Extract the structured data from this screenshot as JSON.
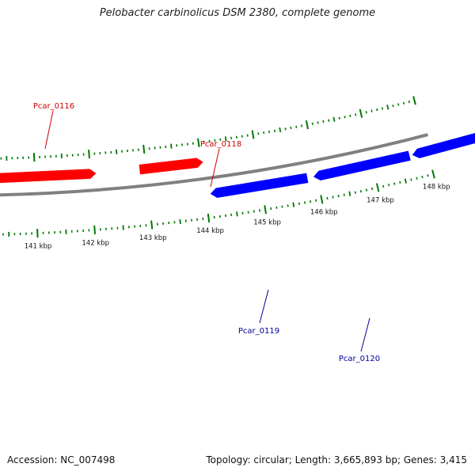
{
  "title": "Pelobacter carbinolicus DSM 2380, complete genome",
  "footer": {
    "accession": "Accession: NC_007498",
    "summary": "Topology: circular; Length: 3,665,893 bp; Genes: 3,415"
  },
  "colors": {
    "forward_gene": "#ff0000",
    "reverse_gene": "#0000ff",
    "forward_label": "#cc0000",
    "reverse_label": "#000099",
    "backbone": "#808080",
    "ticks": "#007700",
    "tick_label": "#111111"
  },
  "scale_labels": [
    "141 kbp",
    "142 kbp",
    "143 kbp",
    "144 kbp",
    "145 kbp",
    "146 kbp",
    "147 kbp",
    "148 kbp"
  ],
  "genes": [
    {
      "id": "Pcar_0116",
      "strand": "forward"
    },
    {
      "id": "Pcar_0118",
      "strand": "forward"
    },
    {
      "id": "Pcar_0119",
      "strand": "reverse"
    },
    {
      "id": "Pcar_0120",
      "strand": "reverse"
    }
  ]
}
